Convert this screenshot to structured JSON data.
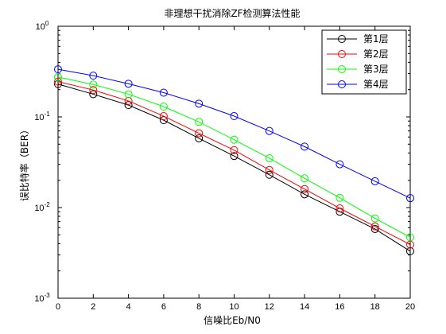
{
  "chart_data": {
    "type": "line",
    "title": "非理想干扰消除ZF检测算法性能",
    "xlabel": "信噪比Eb/N0",
    "ylabel": "误比特率（BER）",
    "x": [
      0,
      2,
      4,
      6,
      8,
      10,
      12,
      14,
      16,
      18,
      20
    ],
    "xlim": [
      0,
      20
    ],
    "ylim": [
      0.001,
      1
    ],
    "yscale": "log",
    "grid": false,
    "legend_position": "top-right",
    "x_ticks": [
      "0",
      "2",
      "4",
      "6",
      "8",
      "10",
      "12",
      "14",
      "16",
      "18",
      "20"
    ],
    "y_ticks": [
      {
        "value": 0.001,
        "base": "10",
        "exp": "-3"
      },
      {
        "value": 0.01,
        "base": "10",
        "exp": "-2"
      },
      {
        "value": 0.1,
        "base": "10",
        "exp": "-1"
      },
      {
        "value": 1,
        "base": "10",
        "exp": "0"
      }
    ],
    "series": [
      {
        "name": "第1层",
        "color": "#000000",
        "marker": "circle",
        "values": [
          0.23,
          0.178,
          0.135,
          0.092,
          0.058,
          0.037,
          0.023,
          0.014,
          0.009,
          0.0058,
          0.0033
        ]
      },
      {
        "name": "第2层",
        "color": "#ff0000",
        "marker": "circle",
        "values": [
          0.245,
          0.198,
          0.15,
          0.102,
          0.066,
          0.043,
          0.026,
          0.016,
          0.0098,
          0.0062,
          0.0039
        ]
      },
      {
        "name": "第3层",
        "color": "#00ff00",
        "marker": "circle",
        "values": [
          0.275,
          0.228,
          0.178,
          0.13,
          0.088,
          0.056,
          0.035,
          0.021,
          0.0128,
          0.0076,
          0.0047
        ]
      },
      {
        "name": "第4层",
        "color": "#0000ff",
        "marker": "circle",
        "values": [
          0.335,
          0.285,
          0.232,
          0.185,
          0.14,
          0.102,
          0.07,
          0.047,
          0.03,
          0.0195,
          0.0127
        ]
      }
    ]
  }
}
